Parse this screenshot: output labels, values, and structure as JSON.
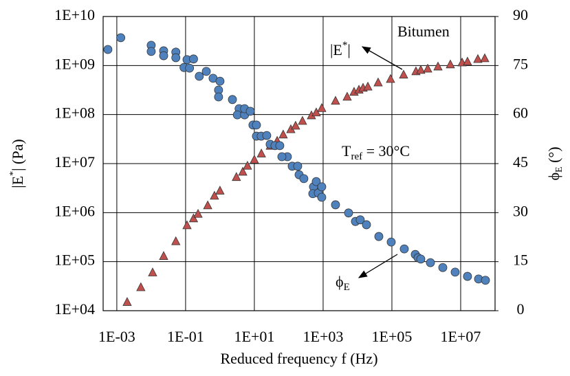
{
  "chart_data": {
    "type": "scatter",
    "x_label": "Reduced frequency f (Hz)",
    "y_label_parts": [
      "|E",
      "*",
      "| (Pa)"
    ],
    "y2_label_parts": [
      "ϕ",
      "E",
      " (°)"
    ],
    "x_log": true,
    "y_log": true,
    "grid": true,
    "xlim": [
      0.0004,
      100000000
    ],
    "xticks": [
      {
        "value": 0.001,
        "label": "1E-03"
      },
      {
        "value": 0.1,
        "label": "1E-01"
      },
      {
        "value": 10,
        "label": "1E+01"
      },
      {
        "value": 1000,
        "label": "1E+03"
      },
      {
        "value": 100000,
        "label": "1E+05"
      },
      {
        "value": 10000000,
        "label": "1E+07"
      }
    ],
    "ylim": [
      10000,
      10000000000
    ],
    "yticks": [
      {
        "value": 10000,
        "label": "1E+04"
      },
      {
        "value": 100000,
        "label": "1E+05"
      },
      {
        "value": 1000000,
        "label": "1E+06"
      },
      {
        "value": 10000000,
        "label": "1E+07"
      },
      {
        "value": 100000000,
        "label": "1E+08"
      },
      {
        "value": 1000000000,
        "label": "1E+09"
      },
      {
        "value": 10000000000,
        "label": "1E+10"
      }
    ],
    "y2lim": [
      0,
      90
    ],
    "y2ticks": [
      0,
      15,
      30,
      45,
      60,
      75,
      90
    ],
    "annotations": {
      "material": "Bitumen",
      "tref_parts": [
        "T",
        "ref",
        " = 30°C"
      ]
    },
    "series": [
      {
        "name_parts": [
          "|E",
          "*",
          "|"
        ],
        "marker": "triangle",
        "color": "#c0504d",
        "x": [
          0.002,
          0.005,
          0.011,
          0.023,
          0.052,
          0.11,
          0.17,
          0.23,
          0.44,
          0.69,
          1,
          3,
          4.6,
          6.3,
          10,
          16,
          29,
          46,
          69,
          115,
          158,
          251,
          457,
          631,
          912,
          2290,
          5010,
          7940,
          11000,
          14500,
          20000,
          39800,
          91200,
          219000,
          501000,
          692000,
          1100000,
          2190000,
          5010000,
          11000000,
          15800000,
          31600000,
          50100000
        ],
        "values": [
          15000,
          30000,
          60000,
          130000,
          260000,
          550000,
          760000,
          940000,
          1400000,
          2200000,
          2800000,
          5300000,
          6800000,
          9000000,
          12000000,
          16000000,
          23000000,
          29000000,
          39000000,
          50000000,
          59000000,
          74000000,
          96000000,
          110000000,
          135000000,
          190000000,
          230000000,
          290000000,
          320000000,
          350000000,
          370000000,
          450000000,
          530000000,
          650000000,
          760000000,
          810000000,
          860000000,
          950000000,
          1050000000,
          1150000000,
          1200000000,
          1350000000,
          1400000000
        ]
      },
      {
        "name_parts": [
          "ϕ",
          "E"
        ],
        "marker": "circle",
        "color": "#4f81bd",
        "axis": "y2",
        "x": [
          0.00055,
          0.0013,
          0.01,
          0.01,
          0.023,
          0.023,
          0.052,
          0.052,
          0.11,
          0.09,
          0.13,
          0.17,
          0.25,
          0.4,
          0.63,
          1,
          0.91,
          0.91,
          2.3,
          3.6,
          3.2,
          5.2,
          5.2,
          7.6,
          9.1,
          11.5,
          11.5,
          15.8,
          22.9,
          28.8,
          39.8,
          54.9,
          91.2,
          63.1,
          126,
          182,
          200,
          275,
          525,
          631,
          501,
          724,
          912,
          912,
          2290,
          5500,
          8710,
          12000,
          18200,
          41700,
          95500,
          229000,
          479000,
          575000,
          692000,
          1320000,
          3020000,
          6920000,
          15800000,
          33100000,
          52500000
        ],
        "values": [
          79.9,
          83.5,
          81.2,
          79.3,
          79.5,
          78.0,
          79.1,
          77.4,
          76.8,
          74.4,
          74.2,
          77.0,
          71.7,
          73.2,
          71.1,
          70.2,
          67.5,
          65.4,
          64.6,
          61.8,
          59.9,
          59.9,
          61.8,
          61.0,
          56.8,
          56.8,
          53.4,
          53.4,
          53.6,
          50.9,
          50.5,
          50.5,
          47.1,
          47.1,
          44.2,
          44.2,
          41.6,
          40.4,
          37.9,
          39.5,
          35.8,
          36.0,
          34.7,
          37.9,
          32.4,
          29.9,
          27.3,
          27.8,
          26.3,
          22.7,
          21.0,
          18.9,
          17.2,
          16.2,
          15.8,
          14.7,
          13.2,
          11.8,
          10.5,
          9.7,
          9.3
        ]
      }
    ]
  }
}
